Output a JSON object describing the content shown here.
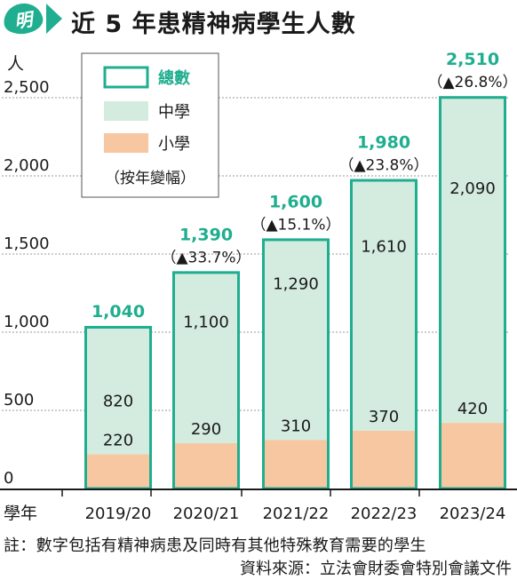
{
  "header": {
    "logo_text": "明",
    "title": "近 5 年患精神病學生人數"
  },
  "colors": {
    "accent": "#1fae8f",
    "total_label": "#1fae8f",
    "secondary": "#d4ebdf",
    "primary": "#f7c7a1"
  },
  "legend": {
    "total": "總數",
    "secondary": "中學",
    "primary": "小學",
    "change_note": "（按年變幅）"
  },
  "chart_data": {
    "type": "bar",
    "stacked": true,
    "title": "近 5 年患精神病學生人數",
    "ylabel": "人",
    "xlabel": "學年",
    "ylim": [
      0,
      2500
    ],
    "yticks": [
      "0",
      "500",
      "1,000",
      "1,500",
      "2,000",
      "2,500"
    ],
    "categories": [
      "2019/20",
      "2020/21",
      "2021/22",
      "2022/23",
      "2023/24"
    ],
    "series": [
      {
        "name": "小學",
        "values": [
          220,
          290,
          310,
          370,
          420
        ],
        "labels": [
          "220",
          "290",
          "310",
          "370",
          "420"
        ]
      },
      {
        "name": "中學",
        "values": [
          820,
          1100,
          1290,
          1610,
          2090
        ],
        "labels": [
          "820",
          "1,100",
          "1,290",
          "1,610",
          "2,090"
        ]
      }
    ],
    "totals": [
      1040,
      1390,
      1600,
      1980,
      2510
    ],
    "total_labels": [
      "1,040",
      "1,390",
      "1,600",
      "1,980",
      "2,510"
    ],
    "changes": [
      "",
      "（▲33.7%）",
      "（▲15.1%）",
      "（▲23.8%）",
      "（▲26.8%）"
    ],
    "grid": true,
    "legend_position": "top-left"
  },
  "footnotes": {
    "note": "註：數字包括有精神病患及同時有其他特殊教育需要的學生",
    "source": "資料來源：立法會財委會特別會議文件"
  }
}
